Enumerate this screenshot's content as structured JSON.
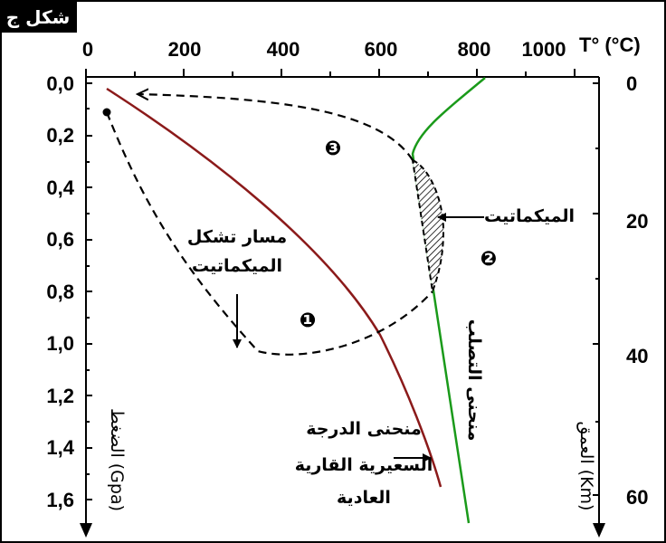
{
  "figure": {
    "label": "شكل ج",
    "temp_axis_label": "T° (°C)",
    "pressure_axis_label": "الضغط (Gpa)",
    "depth_axis_label": "العمق (Km)"
  },
  "axes": {
    "temperature_ticks": [
      "0",
      "200",
      "400",
      "600",
      "800",
      "1000"
    ],
    "pressure_ticks": [
      "0,0",
      "0,2",
      "0,4",
      "0,6",
      "0,8",
      "1,0",
      "1,2",
      "1,4",
      "1,6"
    ],
    "depth_ticks": [
      "0",
      "20",
      "40",
      "60"
    ]
  },
  "annotations": {
    "migmatite_path": [
      "مسار تشكل",
      "الميكماتيت"
    ],
    "migmatite": "الميكماتيت",
    "solidus_curve": "منحنى التصلب",
    "geotherm": [
      "منحنى الدرجة",
      "السعيرية القارية",
      "العادية"
    ],
    "stage_1": "❶",
    "stage_2": "❷",
    "stage_3": "❸"
  },
  "colors": {
    "geotherm": "#8b1a1a",
    "solidus": "#1a9a1a",
    "path": "#000000"
  }
}
